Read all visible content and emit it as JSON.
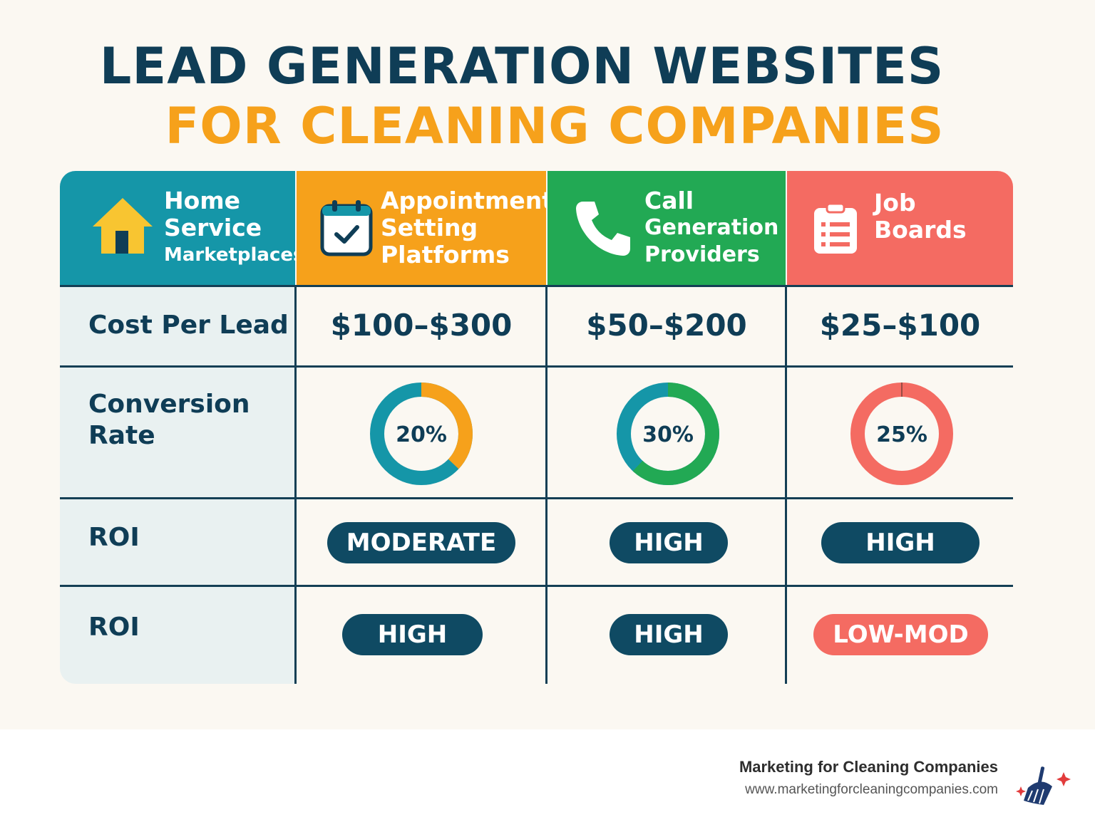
{
  "title": {
    "line1": "LEAD GENERATION WEBSITES",
    "line2": "FOR CLEANING COMPANIES"
  },
  "colors": {
    "navy": "#0f3d56",
    "teal": "#1596a8",
    "orange": "#f6a11b",
    "green": "#22a954",
    "coral": "#f46b62"
  },
  "columns": [
    {
      "lines": [
        "Home",
        "Service",
        "Marketplaces"
      ],
      "icon": "house-icon",
      "color": "#1596a8"
    },
    {
      "lines": [
        "Appointment",
        "Setting",
        "Platforms"
      ],
      "icon": "calendar-check-icon",
      "color": "#f6a11b"
    },
    {
      "lines": [
        "Call",
        "Generation",
        "Providers"
      ],
      "icon": "phone-icon",
      "color": "#22a954"
    },
    {
      "lines": [
        "Job",
        "Boards"
      ],
      "icon": "clipboard-list-icon",
      "color": "#f46b62"
    }
  ],
  "rows": {
    "cost_label": "Cost Per Lead",
    "cost_values": [
      "$100–$300",
      "$50–$200",
      "$25–$100"
    ],
    "conversion_label": [
      "Conversion",
      "Rate"
    ],
    "conversion": [
      {
        "label": "20%",
        "fraction": 0.37,
        "color": "#f6a11b",
        "base": "#1596a8"
      },
      {
        "label": "30%",
        "fraction": 0.62,
        "color": "#22a954",
        "base": "#1596a8"
      },
      {
        "label": "25%",
        "fraction": 0.0,
        "color": "#f46b62",
        "base": "#f46b62"
      }
    ],
    "roi_label_1": "ROI",
    "roi_values_1": [
      "MODERATE",
      "HIGH",
      "HIGH"
    ],
    "roi_label_2": "ROI",
    "roi_values_2": [
      "HIGH",
      "HIGH",
      "LOW-MOD"
    ]
  },
  "footer": {
    "brand": "Marketing for Cleaning Companies",
    "url": "www.marketingforcleaningcompanies.com",
    "logo_icon": "broom-sparkle-icon"
  }
}
